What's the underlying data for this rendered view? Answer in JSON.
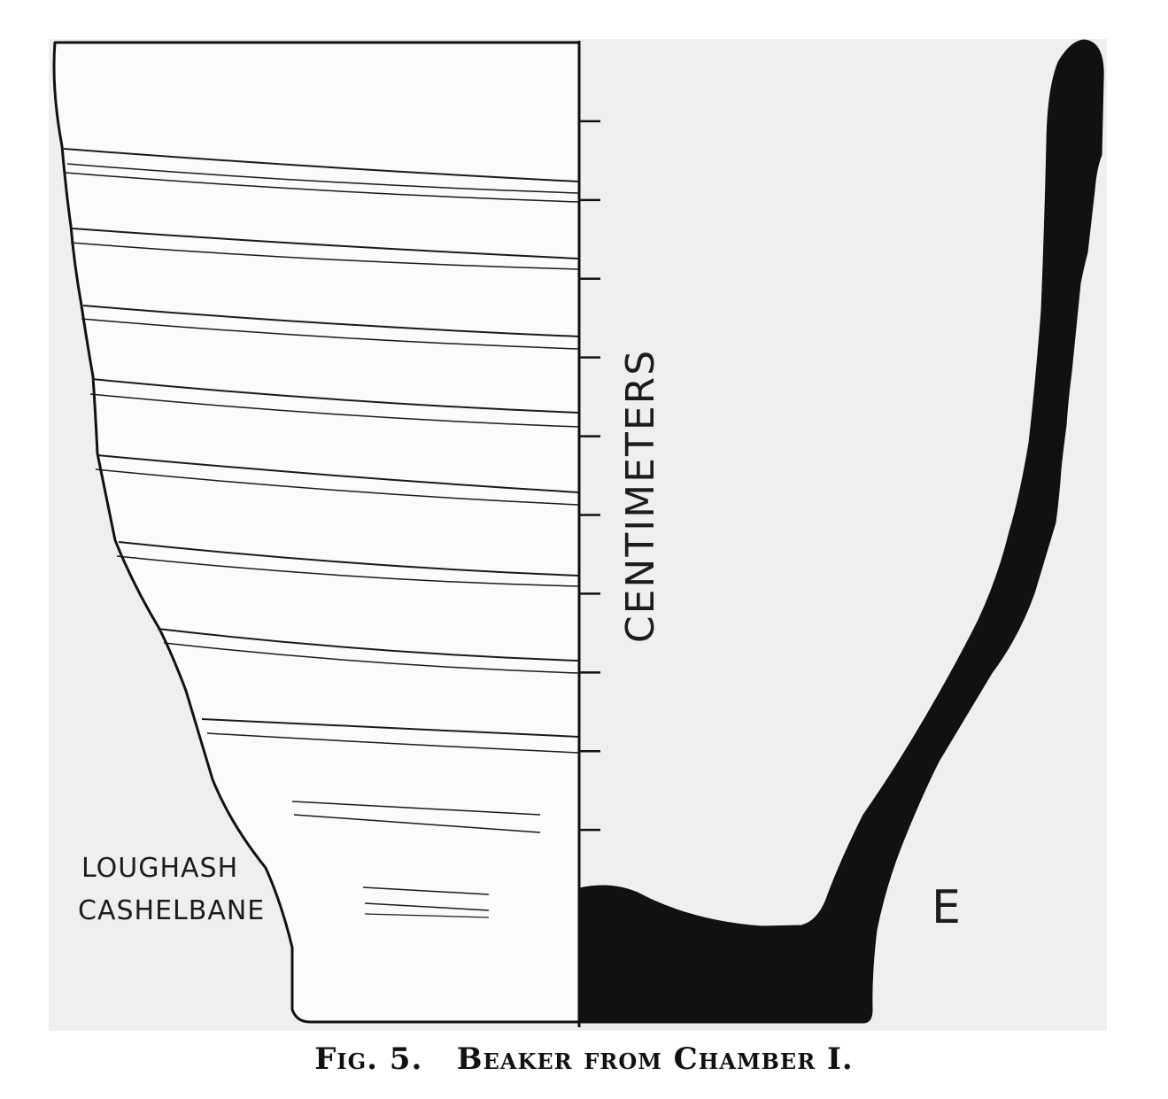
{
  "figure": {
    "scale_label": "CENTIMETERS",
    "site_line_1": "LOUGHASH",
    "site_line_2": "CASHELBANE",
    "letter": "E",
    "scale_tick_count": 10
  },
  "caption": "Fig. 5.   Beaker from Chamber I.",
  "colors": {
    "background": "#f0f0f0",
    "ink": "#111111"
  }
}
